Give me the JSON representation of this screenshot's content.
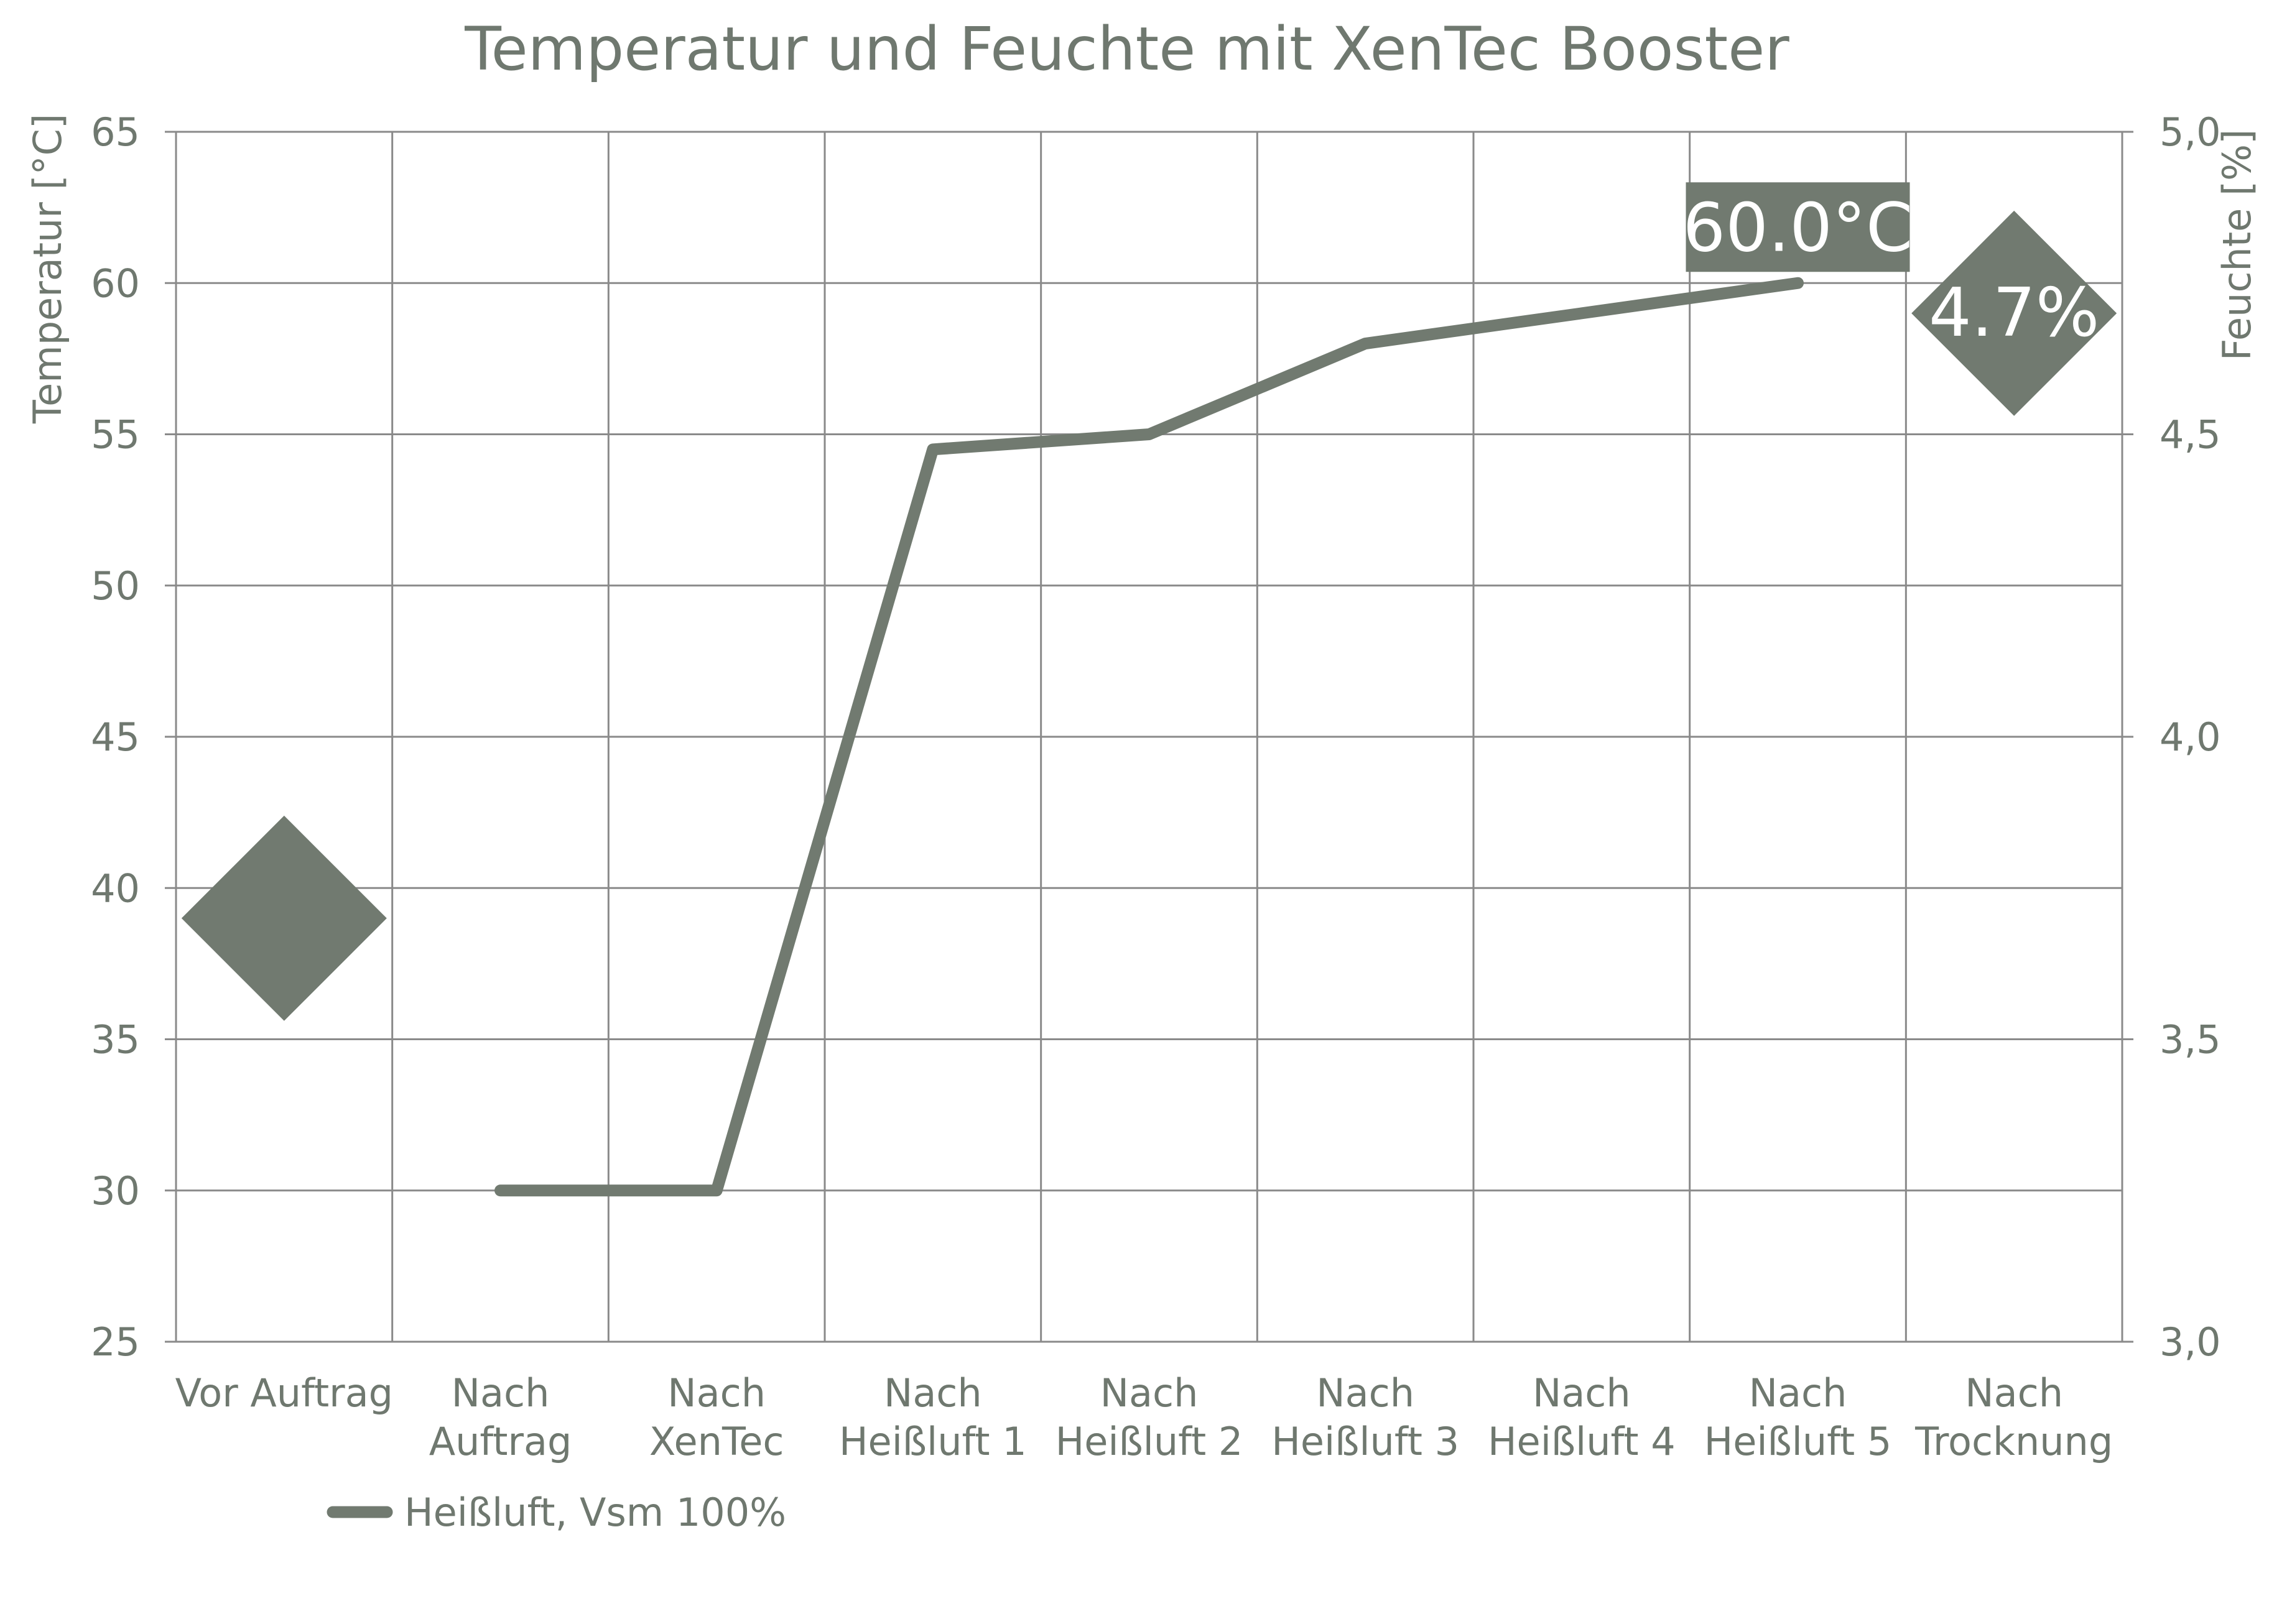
{
  "chart_data": {
    "type": "line",
    "title": "Temperatur und Feuchte mit XenTec Booster",
    "categories": [
      [
        "Vor Auftrag"
      ],
      [
        "Nach",
        "Auftrag"
      ],
      [
        "Nach",
        "XenTec"
      ],
      [
        "Nach",
        "Heißluft 1"
      ],
      [
        "Nach",
        "Heißluft 2"
      ],
      [
        "Nach",
        "Heißluft 3"
      ],
      [
        "Nach",
        "Heißluft 4"
      ],
      [
        "Nach",
        "Heißluft 5"
      ],
      [
        "Nach",
        "Trocknung"
      ]
    ],
    "ylabel_left": "Temperatur [°C]",
    "ylabel_right": "Feuchte [%]",
    "ylim_left": [
      25,
      65
    ],
    "ylim_right": [
      3.0,
      5.0
    ],
    "yticks_left": [
      65,
      60,
      55,
      50,
      45,
      40,
      35,
      30,
      25
    ],
    "yticks_right": [
      "5,0",
      "4,5",
      "4,0",
      "3,5",
      "3,0"
    ],
    "yticks_right_values": [
      5.0,
      4.5,
      4.0,
      3.5,
      3.0
    ],
    "grid": true,
    "series": [
      {
        "name": "Heißluft, Vsm 100%",
        "axis": "left",
        "values": [
          null,
          30,
          30,
          54.5,
          55,
          58,
          59,
          60,
          null
        ]
      }
    ],
    "markers": [
      {
        "category_index": 0,
        "axis": "left",
        "value": 39,
        "shape": "diamond"
      },
      {
        "category_index": 8,
        "axis": "right",
        "value": 4.7,
        "shape": "diamond",
        "label": "4.7%"
      }
    ],
    "annotations": [
      {
        "category_index": 7,
        "value": 60,
        "text": "60.0°C"
      }
    ],
    "legend_position": "bottom-left",
    "colors": {
      "series": "#717a70",
      "grid": "#8a8a8a",
      "text": "#6f786f",
      "background": "#ffffff"
    }
  }
}
